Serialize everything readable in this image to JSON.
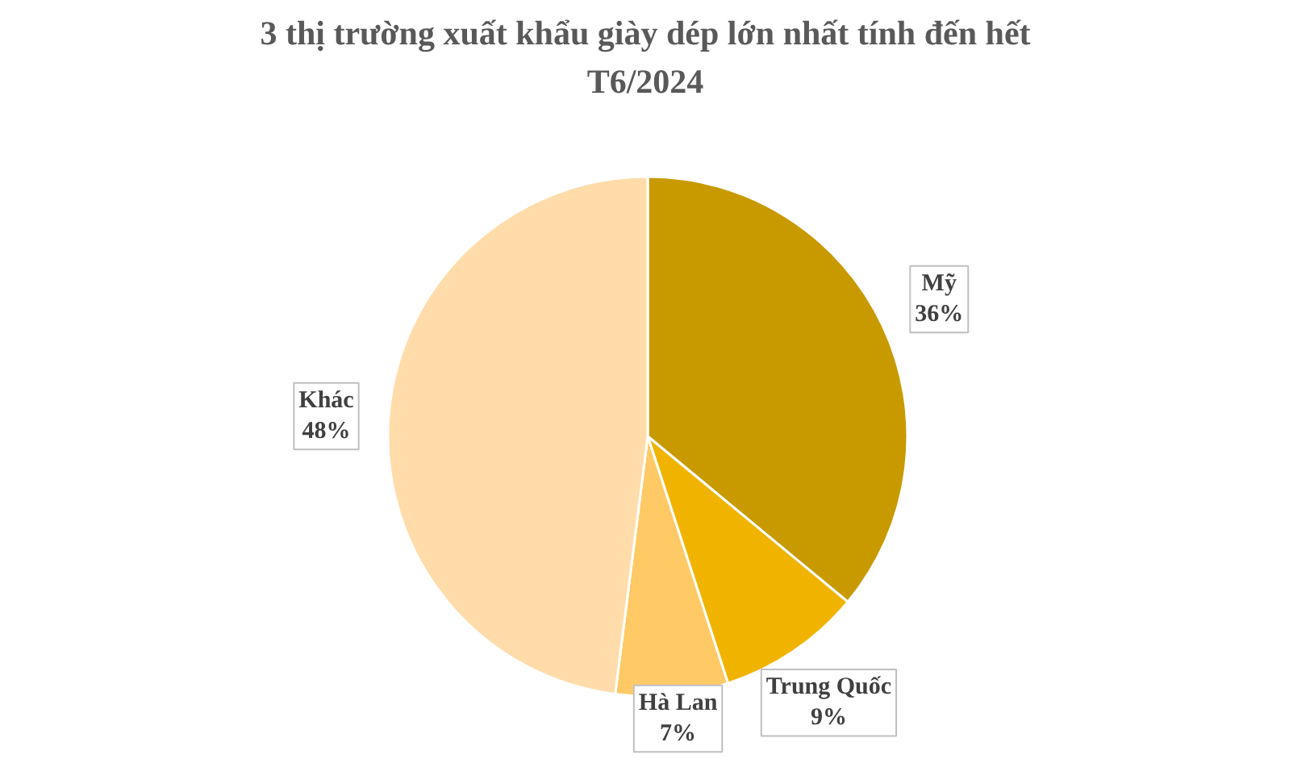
{
  "chart_data": {
    "type": "pie",
    "title": "3 thị trường xuất khẩu giày dép lớn nhất tính đến hết\nT6/2024",
    "categories": [
      "Mỹ",
      "Trung Quốc",
      "Hà Lan",
      "Khác"
    ],
    "values": [
      36,
      9,
      7,
      48
    ],
    "value_labels": [
      "36%",
      "9%",
      "7%",
      "48%"
    ],
    "colors": [
      "#c89a00",
      "#f0b400",
      "#ffc966",
      "#ffdcaa"
    ],
    "legend": false
  }
}
